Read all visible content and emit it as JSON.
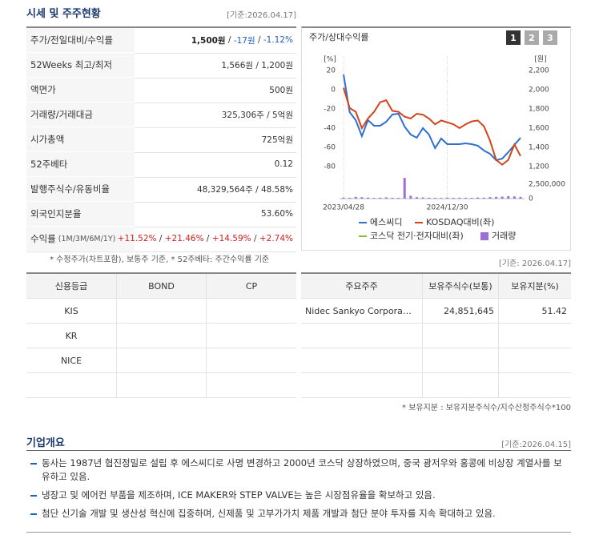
{
  "header": {
    "title": "시세 및 주주현황",
    "date": "[기준:2026.04.17]"
  },
  "stock_table": {
    "rows": [
      {
        "label": "주가/전일대비/수익률",
        "parts": [
          "1,500원",
          " / ",
          "-17원",
          " / ",
          "-1.12%"
        ]
      },
      {
        "label": "52Weeks 최고/최저",
        "value": "1,566원 / 1,200원"
      },
      {
        "label": "액면가",
        "value": "500원"
      },
      {
        "label": "거래량/거래대금",
        "value": "325,306주 / 5억원"
      },
      {
        "label": "시가총액",
        "value": "725억원"
      },
      {
        "label": "52주베타",
        "value": "0.12"
      },
      {
        "label": "발행주식수/유동비율",
        "value": "48,329,564주 / 48.58%"
      },
      {
        "label": "외국인지분율",
        "value": "53.60%"
      },
      {
        "label": "수익률",
        "sublabel": "(1M/3M/6M/1Y)",
        "parts": [
          "+11.52%",
          " / ",
          "+21.46%",
          " / ",
          "+14.59%",
          " / ",
          "+2.74%"
        ]
      }
    ],
    "note": "* 수정주가(차트포함), 보통주 기준, * 52주베타: 주간수익률 기준"
  },
  "chart_data": {
    "type": "line",
    "title": "주가/상대수익률",
    "buttons": [
      "1",
      "2",
      "3"
    ],
    "ylabel": "[%]",
    "y2label": "[원]",
    "categories": [
      "2023/04/28",
      null,
      null,
      null,
      null,
      null,
      null,
      null,
      null,
      null,
      null,
      null,
      null,
      null,
      null,
      null,
      null,
      "2024/12/30",
      null,
      null,
      null,
      null,
      null,
      null,
      null,
      null,
      null,
      null,
      null,
      null
    ],
    "ylim": [
      -80,
      20
    ],
    "yticks": [
      20,
      0,
      -20,
      -40,
      -60,
      -80
    ],
    "y2lim": [
      1200,
      2200
    ],
    "y2ticks": [
      {
        "value": 2200,
        "label": "2,200"
      },
      {
        "value": 2000,
        "label": "2,000"
      },
      {
        "value": 1800,
        "label": "1,800"
      },
      {
        "value": 1600,
        "label": "1,600"
      },
      {
        "value": 1400,
        "label": "1,400"
      },
      {
        "value": 1200,
        "label": "1,200"
      }
    ],
    "vlim": [
      0,
      2500000
    ],
    "vticks": [
      {
        "value": 2500000,
        "label": "2,500,000"
      },
      0
    ],
    "series": [
      {
        "name": "에스씨디",
        "color": "#2f6fd0",
        "axis": "y2",
        "values": [
          2158,
          1767,
          1683,
          1517,
          1683,
          1625,
          1625,
          1667,
          1742,
          1750,
          1617,
          1533,
          1500,
          1600,
          1533,
          1392,
          1492,
          1433,
          1433,
          1433,
          1442,
          1433,
          1417,
          1367,
          1333,
          1267,
          1283,
          1350,
          1425,
          1500
        ]
      },
      {
        "name": "KOSDAQ대비(좌)",
        "color": "#d0451b",
        "values": [
          2,
          -19,
          -23,
          -40,
          -30,
          -23,
          -13,
          -11,
          -22,
          -23,
          -28,
          -30,
          -25,
          -26,
          -30,
          -36,
          -32,
          -34,
          -36,
          -40,
          -36,
          -33,
          -32,
          -38,
          -53,
          -73,
          -78,
          -73,
          -57,
          -69
        ]
      },
      {
        "name": "코스닥 전기·전자대비(좌)",
        "color": "#8dbd2e"
      },
      {
        "name": "거래량",
        "color": "#9b6fd6",
        "axis": "volume",
        "values": [
          200000,
          150000,
          300000,
          250000,
          180000,
          120000,
          160000,
          220000,
          140000,
          130000,
          3600000,
          500000,
          250000,
          200000,
          150000,
          130000,
          120000,
          180000,
          140000,
          160000,
          150000,
          130000,
          200000,
          170000,
          260000,
          300000,
          350000,
          420000,
          380000,
          300000
        ]
      }
    ]
  },
  "chart_date": "[기준: 2026.04.17]",
  "credit_table": {
    "columns": [
      "신용등급",
      "BOND",
      "CP"
    ],
    "rows": [
      "KIS",
      "KR",
      "NICE"
    ]
  },
  "shareholders": {
    "columns": [
      "주요주주",
      "보유주식수(보통)",
      "보유지분(%)"
    ],
    "rows": [
      [
        "Nidec Sankyo Corpora…",
        "24,851,645",
        "51.42"
      ]
    ],
    "note": "* 보유지분 : 보유지분주식수/지수산정주식수*100"
  },
  "company": {
    "title": "기업개요",
    "date": "[기준:2026.04.15]",
    "bullets": [
      "동사는 1987년 협진정밀로 설립 후 에스씨디로 사명 변경하고 2000년 코스닥 상장하였으며, 중국 광저우와 홍콩에 비상장 계열사를 보유하고 있음.",
      "냉장고 및 에어컨 부품을 제조하며, ICE MAKER와 STEP VALVE는 높은 시장점유율을 확보하고 있음.",
      "첨단 신기술 개발 및 생산성 혁신에 집중하며, 신제품 및 고부가가치 제품 개발과 첨단 분야 투자를 지속 확대하고 있음."
    ]
  }
}
